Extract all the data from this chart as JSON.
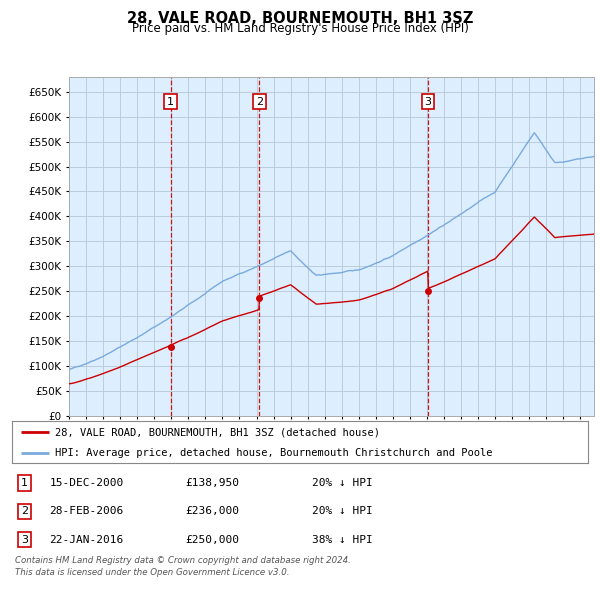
{
  "title": "28, VALE ROAD, BOURNEMOUTH, BH1 3SZ",
  "subtitle": "Price paid vs. HM Land Registry's House Price Index (HPI)",
  "ylim": [
    0,
    680000
  ],
  "xlim_start": 1995.0,
  "xlim_end": 2025.8,
  "sale_dates": [
    2000.96,
    2006.16,
    2016.06
  ],
  "sale_prices": [
    138950,
    236000,
    250000
  ],
  "sale_labels": [
    "1",
    "2",
    "3"
  ],
  "hpi_color": "#7aaadd",
  "price_color": "#cc0000",
  "grid_color": "#bbccdd",
  "plot_bg": "#ddeeff",
  "legend_entries": [
    "28, VALE ROAD, BOURNEMOUTH, BH1 3SZ (detached house)",
    "HPI: Average price, detached house, Bournemouth Christchurch and Poole"
  ],
  "table_rows": [
    [
      "1",
      "15-DEC-2000",
      "£138,950",
      "20% ↓ HPI"
    ],
    [
      "2",
      "28-FEB-2006",
      "£236,000",
      "20% ↓ HPI"
    ],
    [
      "3",
      "22-JAN-2016",
      "£250,000",
      "38% ↓ HPI"
    ]
  ],
  "footnote": "Contains HM Land Registry data © Crown copyright and database right 2024.\nThis data is licensed under the Open Government Licence v3.0."
}
